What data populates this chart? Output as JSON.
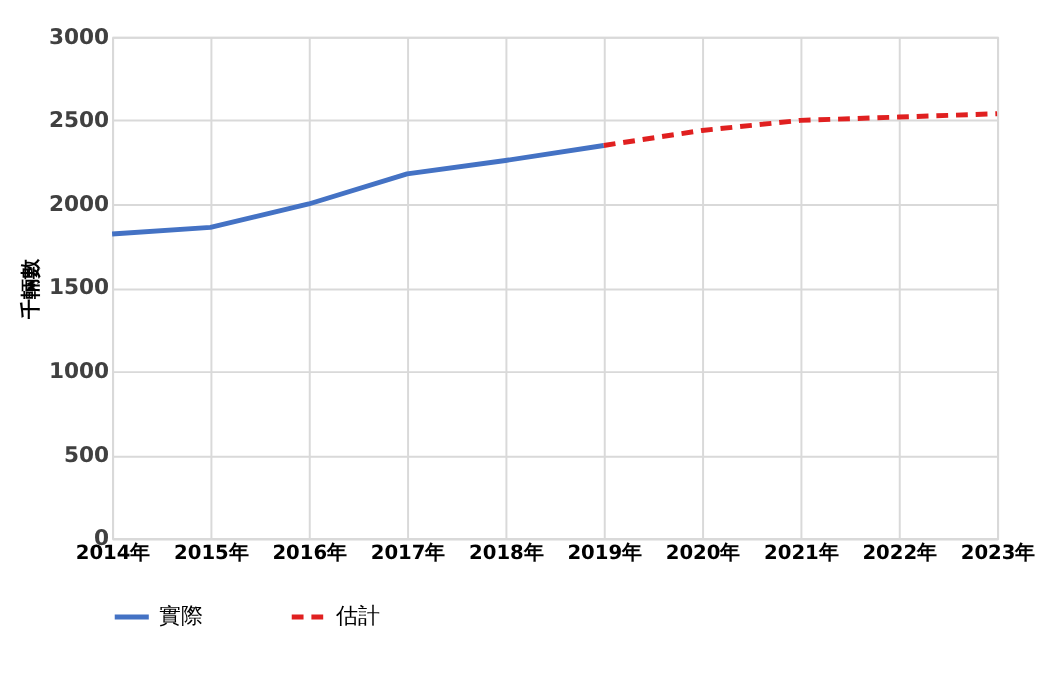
{
  "chart_data": {
    "type": "line",
    "ylabel": "千輛數",
    "categories": [
      "2014年",
      "2015年",
      "2016年",
      "2017年",
      "2018年",
      "2019年",
      "2020年",
      "2021年",
      "2022年",
      "2023年"
    ],
    "series": [
      {
        "name": "實際",
        "color": "#4472c4",
        "line_style": "solid",
        "values": [
          1820,
          1860,
          2000,
          2180,
          2260,
          2350,
          null,
          null,
          null,
          null
        ]
      },
      {
        "name": "估計",
        "color": "#e02020",
        "line_style": "dashed",
        "values": [
          null,
          null,
          null,
          null,
          null,
          2350,
          2440,
          2500,
          2520,
          2540
        ]
      }
    ],
    "ylim": [
      0,
      3000
    ],
    "yticks": [
      0,
      500,
      1000,
      1500,
      2000,
      2500,
      3000
    ],
    "grid": true,
    "legend": "bottom",
    "marker": "none"
  }
}
